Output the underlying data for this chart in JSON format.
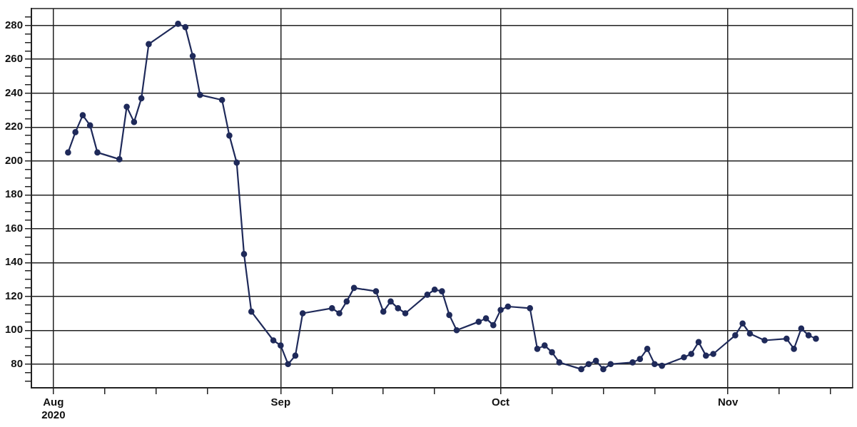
{
  "chart_data": {
    "type": "line",
    "x": [
      "2020-08-03",
      "2020-08-04",
      "2020-08-05",
      "2020-08-06",
      "2020-08-07",
      "2020-08-10",
      "2020-08-11",
      "2020-08-12",
      "2020-08-13",
      "2020-08-14",
      "2020-08-18",
      "2020-08-19",
      "2020-08-20",
      "2020-08-21",
      "2020-08-24",
      "2020-08-25",
      "2020-08-26",
      "2020-08-27",
      "2020-08-28",
      "2020-08-31",
      "2020-09-01",
      "2020-09-02",
      "2020-09-03",
      "2020-09-04",
      "2020-09-08",
      "2020-09-09",
      "2020-09-10",
      "2020-09-11",
      "2020-09-14",
      "2020-09-15",
      "2020-09-16",
      "2020-09-17",
      "2020-09-18",
      "2020-09-21",
      "2020-09-22",
      "2020-09-23",
      "2020-09-24",
      "2020-09-25",
      "2020-09-28",
      "2020-09-29",
      "2020-09-30",
      "2020-10-01",
      "2020-10-02",
      "2020-10-05",
      "2020-10-06",
      "2020-10-07",
      "2020-10-08",
      "2020-10-09",
      "2020-10-12",
      "2020-10-13",
      "2020-10-14",
      "2020-10-15",
      "2020-10-16",
      "2020-10-19",
      "2020-10-20",
      "2020-10-21",
      "2020-10-22",
      "2020-10-23",
      "2020-10-26",
      "2020-10-27",
      "2020-10-28",
      "2020-10-29",
      "2020-10-30",
      "2020-11-02",
      "2020-11-03",
      "2020-11-04",
      "2020-11-06",
      "2020-11-09",
      "2020-11-10",
      "2020-11-11",
      "2020-11-12",
      "2020-11-13"
    ],
    "series": [
      {
        "color": "#1f2a5a",
        "values": [
          205,
          217,
          227,
          221,
          205,
          201,
          232,
          223,
          237,
          269,
          281,
          279,
          262,
          239,
          236,
          215,
          199,
          145,
          111,
          94,
          91,
          80,
          85,
          110,
          113,
          110,
          117,
          125,
          123,
          111,
          117,
          113,
          110,
          121,
          124,
          123,
          109,
          100,
          105,
          107,
          103,
          112,
          114,
          113,
          89,
          91,
          87,
          81,
          77,
          80,
          82,
          77,
          80,
          81,
          83,
          89,
          80,
          79,
          84,
          86,
          93,
          85,
          86,
          97,
          104,
          98,
          94,
          95,
          89,
          101,
          97,
          95
        ]
      }
    ],
    "xlim": [
      "2020-07-29",
      "2020-11-18"
    ],
    "xticks": [
      {
        "value": "2020-08-01",
        "label": "Aug\n2020"
      },
      {
        "value": "2020-08-08",
        "label": null
      },
      {
        "value": "2020-08-15",
        "label": null
      },
      {
        "value": "2020-08-22",
        "label": null
      },
      {
        "value": "2020-09-01",
        "label": "Sep"
      },
      {
        "value": "2020-09-08",
        "label": null
      },
      {
        "value": "2020-09-15",
        "label": null
      },
      {
        "value": "2020-09-22",
        "label": null
      },
      {
        "value": "2020-10-01",
        "label": "Oct"
      },
      {
        "value": "2020-10-08",
        "label": null
      },
      {
        "value": "2020-10-15",
        "label": null
      },
      {
        "value": "2020-10-22",
        "label": null
      },
      {
        "value": "2020-11-01",
        "label": "Nov"
      },
      {
        "value": "2020-11-08",
        "label": null
      },
      {
        "value": "2020-11-15",
        "label": null
      }
    ],
    "ylim": [
      66,
      290
    ],
    "yticks": [
      {
        "value": 70,
        "label": null
      },
      {
        "value": 75,
        "label": null
      },
      80,
      {
        "value": 85,
        "label": null
      },
      {
        "value": 90,
        "label": null
      },
      {
        "value": 95,
        "label": null
      },
      100,
      {
        "value": 105,
        "label": null
      },
      {
        "value": 110,
        "label": null
      },
      {
        "value": 115,
        "label": null
      },
      120,
      {
        "value": 125,
        "label": null
      },
      {
        "value": 130,
        "label": null
      },
      {
        "value": 135,
        "label": null
      },
      140,
      {
        "value": 145,
        "label": null
      },
      {
        "value": 150,
        "label": null
      },
      {
        "value": 155,
        "label": null
      },
      160,
      {
        "value": 165,
        "label": null
      },
      {
        "value": 170,
        "label": null
      },
      {
        "value": 175,
        "label": null
      },
      180,
      {
        "value": 185,
        "label": null
      },
      {
        "value": 190,
        "label": null
      },
      {
        "value": 195,
        "label": null
      },
      200,
      {
        "value": 205,
        "label": null
      },
      {
        "value": 210,
        "label": null
      },
      {
        "value": 215,
        "label": null
      },
      220,
      {
        "value": 225,
        "label": null
      },
      {
        "value": 230,
        "label": null
      },
      {
        "value": 235,
        "label": null
      },
      240,
      {
        "value": 245,
        "label": null
      },
      {
        "value": 250,
        "label": null
      },
      {
        "value": 255,
        "label": null
      },
      260,
      {
        "value": 265,
        "label": null
      },
      {
        "value": 270,
        "label": null
      },
      {
        "value": 275,
        "label": null
      },
      280,
      {
        "value": 285,
        "label": null
      }
    ],
    "grid": true,
    "legend": false,
    "marker": "circle",
    "line_style": "solid"
  }
}
